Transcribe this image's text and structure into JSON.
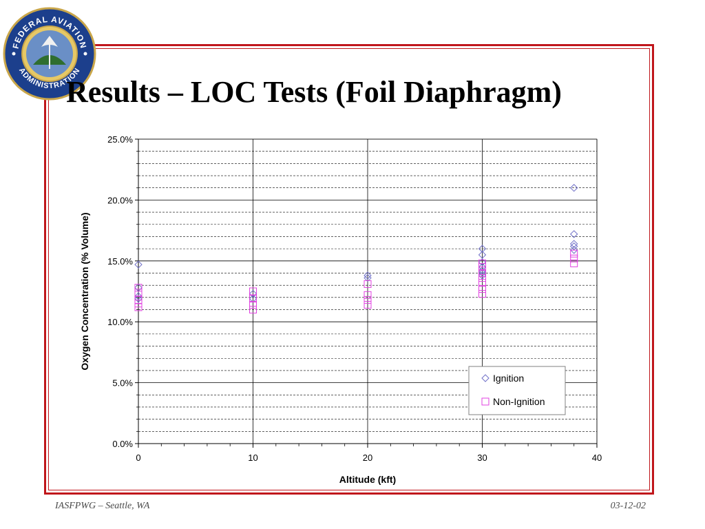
{
  "slide": {
    "title": "Results – LOC Tests (Foil Diaphragm)",
    "footer_left": "IASFPWG – Seattle, WA",
    "footer_right": "03-12-02",
    "seal_top_text": "FEDERAL AVIATION",
    "seal_bottom_text": "ADMINISTRATION",
    "frame_color": "#c0161b"
  },
  "chart_data": {
    "type": "scatter",
    "xlabel": "Altitude (kft)",
    "ylabel": "Oxygen Concentration (% Volume)",
    "xlim": [
      0,
      40
    ],
    "ylim": [
      0,
      25
    ],
    "x_ticks": [
      0,
      10,
      20,
      30,
      40
    ],
    "y_ticks": [
      0,
      5,
      10,
      15,
      20,
      25
    ],
    "y_tick_labels": [
      "0.0%",
      "5.0%",
      "10.0%",
      "15.0%",
      "20.0%",
      "25.0%"
    ],
    "grid": "major solid, minor dashed",
    "legend_position": "bottom-right",
    "series": [
      {
        "name": "Ignition",
        "marker": "diamond",
        "color": "#7070c8",
        "points": [
          [
            0,
            14.7
          ],
          [
            0,
            12.8
          ],
          [
            0,
            12.1
          ],
          [
            0,
            11.9
          ],
          [
            10,
            12.3
          ],
          [
            10,
            11.9
          ],
          [
            20,
            13.8
          ],
          [
            20,
            13.6
          ],
          [
            30,
            16.0
          ],
          [
            30,
            15.5
          ],
          [
            30,
            14.9
          ],
          [
            30,
            14.5
          ],
          [
            30,
            14.2
          ],
          [
            30,
            14.0
          ],
          [
            30,
            13.8
          ],
          [
            38,
            21.0
          ],
          [
            38,
            17.2
          ],
          [
            38,
            16.4
          ],
          [
            38,
            16.2
          ],
          [
            38,
            15.9
          ]
        ]
      },
      {
        "name": "Non-Ignition",
        "marker": "square",
        "color": "#e040e0",
        "points": [
          [
            0,
            12.8
          ],
          [
            0,
            12.4
          ],
          [
            0,
            11.8
          ],
          [
            0,
            11.5
          ],
          [
            0,
            11.2
          ],
          [
            10,
            12.5
          ],
          [
            10,
            11.9
          ],
          [
            10,
            11.4
          ],
          [
            10,
            11.0
          ],
          [
            20,
            13.1
          ],
          [
            20,
            12.2
          ],
          [
            20,
            11.8
          ],
          [
            20,
            11.4
          ],
          [
            30,
            14.8
          ],
          [
            30,
            14.5
          ],
          [
            30,
            14.0
          ],
          [
            30,
            13.6
          ],
          [
            30,
            13.2
          ],
          [
            30,
            12.7
          ],
          [
            30,
            12.3
          ],
          [
            38,
            15.6
          ],
          [
            38,
            15.2
          ],
          [
            38,
            14.8
          ]
        ]
      }
    ]
  }
}
